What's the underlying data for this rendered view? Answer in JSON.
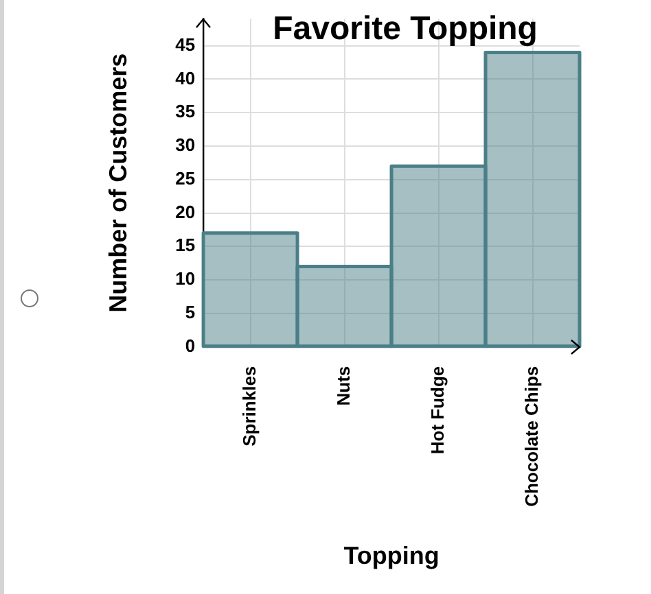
{
  "chart_data": {
    "type": "bar",
    "title": "Favorite Topping",
    "xlabel": "Topping",
    "ylabel": "Number of Customers",
    "categories": [
      "Sprinkles",
      "Nuts",
      "Hot Fudge",
      "Chocolate Chips"
    ],
    "values": [
      17,
      12,
      27,
      44
    ],
    "color": "#4b7f88",
    "ylim": [
      0,
      49
    ],
    "yticks": [
      0,
      5,
      10,
      15,
      20,
      25,
      30,
      35,
      40,
      45
    ],
    "grid": true
  }
}
